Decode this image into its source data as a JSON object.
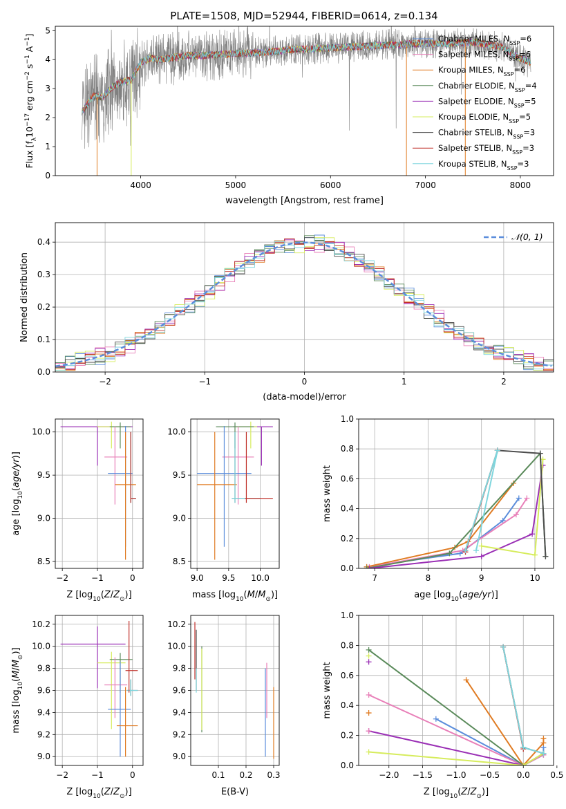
{
  "figure": {
    "title": "PLATE=1508, MJD=52944, FIBERID=0614, z=0.134"
  },
  "colors": {
    "Chabrier MILES": "#5b8ddb",
    "Salpeter MILES": "#e87fb8",
    "Kroupa MILES": "#e07b22",
    "Chabrier ELODIE": "#5a8a5a",
    "Salpeter ELODIE": "#9a2fb5",
    "Kroupa ELODIE": "#d6ec5c",
    "Chabrier STELIB": "#4d4d4d",
    "Salpeter STELIB": "#c0302a",
    "Kroupa STELIB": "#7fd6dd",
    "data": "#808080",
    "normal": "#5b8ddb"
  },
  "chart_data": [
    {
      "panel": "spectrum",
      "type": "line",
      "xlabel": "wavelength [Angstrom, rest frame]",
      "ylabel": "Flux [f_λ10^-17 erg cm^-2 s^-1 A^-1]",
      "xlim": [
        3100,
        8350
      ],
      "ylim": [
        0,
        5.15
      ],
      "xticks": [
        4000,
        5000,
        6000,
        7000,
        8000
      ],
      "yticks": [
        0,
        1,
        2,
        3,
        4,
        5
      ],
      "grid": false,
      "legend_position": "top-right",
      "legend": [
        {
          "label": "Chabrier MILES, N",
          "sub": "SSP",
          "value": "6",
          "model": "Chabrier MILES"
        },
        {
          "label": "Salpeter MILES, N",
          "sub": "SSP",
          "value": "6",
          "model": "Salpeter MILES"
        },
        {
          "label": "Kroupa MILES, N",
          "sub": "SSP",
          "value": "6",
          "model": "Kroupa MILES"
        },
        {
          "label": "Chabrier ELODIE, N",
          "sub": "SSP",
          "value": "4",
          "model": "Chabrier ELODIE"
        },
        {
          "label": "Salpeter ELODIE, N",
          "sub": "SSP",
          "value": "5",
          "model": "Salpeter ELODIE"
        },
        {
          "label": "Kroupa ELODIE, N",
          "sub": "SSP",
          "value": "5",
          "model": "Kroupa ELODIE"
        },
        {
          "label": "Chabrier STELIB, N",
          "sub": "SSP",
          "value": "3",
          "model": "Chabrier STELIB"
        },
        {
          "label": "Salpeter STELIB, N",
          "sub": "SSP",
          "value": "3",
          "model": "Salpeter STELIB"
        },
        {
          "label": "Kroupa STELIB, N",
          "sub": "SSP",
          "value": "3",
          "model": "Kroupa STELIB"
        }
      ],
      "continuum": {
        "x": [
          3380,
          3500,
          3600,
          3700,
          3800,
          3900,
          4000,
          4100,
          4200,
          4300,
          4500,
          4700,
          5000,
          5300,
          5600,
          6000,
          6300,
          6600,
          6900,
          7200,
          7500,
          7800,
          8000,
          8100
        ],
        "y": [
          2.2,
          2.75,
          2.7,
          3.05,
          3.25,
          3.3,
          3.9,
          4.05,
          4.0,
          4.05,
          4.15,
          4.15,
          4.2,
          4.25,
          4.35,
          4.4,
          4.45,
          4.5,
          4.55,
          4.55,
          4.6,
          4.45,
          4.05,
          3.9
        ]
      }
    },
    {
      "panel": "residuals",
      "type": "line",
      "xlabel": "(data-model)/error",
      "ylabel": "Normed distribution",
      "xlim": [
        -2.5,
        2.5
      ],
      "ylim": [
        0,
        0.46
      ],
      "xticks": [
        -2,
        -1,
        0,
        1,
        2
      ],
      "yticks": [
        0.0,
        0.1,
        0.2,
        0.3,
        0.4
      ],
      "grid": true,
      "legend_position": "top-right",
      "legend": [
        {
          "label": "N(0, 1)",
          "style": "dashed"
        }
      ],
      "bin_width": 0.1,
      "series": [
        {
          "name": "Normal",
          "model": "normal",
          "function": "gaussian",
          "mean": 0,
          "sigma": 1
        },
        {
          "name": "Chabrier MILES",
          "hist_offset": 0.012,
          "phase": 0.0
        },
        {
          "name": "Salpeter MILES",
          "hist_offset": -0.012,
          "phase": 1.3
        },
        {
          "name": "Kroupa MILES",
          "hist_offset": 0.005,
          "phase": 2.1
        },
        {
          "name": "Chabrier ELODIE",
          "hist_offset": -0.006,
          "phase": 3.4
        },
        {
          "name": "Salpeter ELODIE",
          "hist_offset": 0.009,
          "phase": 4.7
        },
        {
          "name": "Kroupa ELODIE",
          "hist_offset": 0.015,
          "phase": 5.5
        },
        {
          "name": "Chabrier STELIB",
          "hist_offset": -0.003,
          "phase": 6.2
        },
        {
          "name": "Salpeter STELIB",
          "hist_offset": 0.0,
          "phase": 7.9
        },
        {
          "name": "Kroupa STELIB",
          "hist_offset": 0.003,
          "phase": 8.6
        }
      ]
    },
    {
      "panel": "age_vs_Z",
      "type": "scatter",
      "xlabel": "Z [log10(Z/Z⊙)]",
      "ylabel": "age [log10(age/yr)]",
      "xlim": [
        -2.2,
        0.3
      ],
      "ylim": [
        8.42,
        10.15
      ],
      "xticks": [
        -2,
        -1,
        0
      ],
      "yticks": [
        8.5,
        9.0,
        9.5,
        10.0
      ],
      "grid": true,
      "points": [
        {
          "model": "Salpeter ELODIE",
          "x": -1.0,
          "xerr": [
            1.05,
            1.0
          ],
          "y": 10.06,
          "yerr": [
            0.45,
            0.0
          ]
        },
        {
          "model": "Kroupa ELODIE",
          "x": -0.6,
          "xerr": [
            0.4,
            0.3
          ],
          "y": 10.06,
          "yerr": [
            0.25,
            0.06
          ]
        },
        {
          "model": "Chabrier ELODIE",
          "x": -0.35,
          "xerr": [
            0.3,
            0.3
          ],
          "y": 10.06,
          "yerr": [
            0.25,
            0.05
          ]
        },
        {
          "model": "Salpeter MILES",
          "x": -0.5,
          "xerr": [
            0.3,
            0.35
          ],
          "y": 9.71,
          "yerr": [
            0.55,
            0.35
          ]
        },
        {
          "model": "Chabrier MILES",
          "x": -0.2,
          "xerr": [
            0.5,
            0.2
          ],
          "y": 9.52,
          "yerr": [
            0.85,
            0.55
          ]
        },
        {
          "model": "Kroupa MILES",
          "x": -0.2,
          "xerr": [
            0.3,
            0.3
          ],
          "y": 9.39,
          "yerr": [
            0.87,
            0.61
          ]
        },
        {
          "model": "Chabrier STELIB",
          "x": -0.05,
          "xerr": [
            0.0,
            0.15
          ],
          "y": 9.23,
          "yerr": [
            0.05,
            0.77
          ]
        },
        {
          "model": "Kroupa STELIB",
          "x": -0.05,
          "xerr": [
            0.0,
            0.15
          ],
          "y": 9.23,
          "yerr": [
            0.05,
            0.77
          ]
        },
        {
          "model": "Salpeter STELIB",
          "x": -0.05,
          "xerr": [
            0.0,
            0.15
          ],
          "y": 9.23,
          "yerr": [
            0.05,
            0.77
          ]
        }
      ]
    },
    {
      "panel": "age_vs_mass",
      "type": "scatter",
      "xlabel": "mass [log10(M/M⊙)]",
      "ylabel": "",
      "xlim": [
        8.9,
        10.3
      ],
      "ylim": [
        8.42,
        10.15
      ],
      "xticks": [
        9.0,
        9.5,
        10.0
      ],
      "yticks": [
        8.5,
        9.0,
        9.5,
        10.0
      ],
      "grid": true,
      "points": [
        {
          "model": "Salpeter ELODIE",
          "x": 10.02,
          "xerr": [
            0.45,
            0.18
          ],
          "y": 10.06,
          "yerr": [
            0.45,
            0.0
          ]
        },
        {
          "model": "Kroupa ELODIE",
          "x": 9.85,
          "xerr": [
            0.25,
            0.1
          ],
          "y": 10.06,
          "yerr": [
            0.25,
            0.06
          ]
        },
        {
          "model": "Chabrier ELODIE",
          "x": 9.6,
          "xerr": [
            0.3,
            0.3
          ],
          "y": 10.06,
          "yerr": [
            0.25,
            0.05
          ]
        },
        {
          "model": "Salpeter MILES",
          "x": 9.65,
          "xerr": [
            0.25,
            0.25
          ],
          "y": 9.71,
          "yerr": [
            0.55,
            0.35
          ]
        },
        {
          "model": "Chabrier MILES",
          "x": 9.43,
          "xerr": [
            0.43,
            0.43
          ],
          "y": 9.52,
          "yerr": [
            0.85,
            0.55
          ]
        },
        {
          "model": "Kroupa MILES",
          "x": 9.28,
          "xerr": [
            0.28,
            0.35
          ],
          "y": 9.39,
          "yerr": [
            0.87,
            0.61
          ]
        },
        {
          "model": "Chabrier STELIB",
          "x": 9.6,
          "xerr": [
            0.05,
            0.4
          ],
          "y": 9.23,
          "yerr": [
            0.05,
            0.77
          ]
        },
        {
          "model": "Kroupa STELIB",
          "x": 9.6,
          "xerr": [
            0.05,
            0.4
          ],
          "y": 9.23,
          "yerr": [
            0.05,
            0.77
          ]
        },
        {
          "model": "Salpeter STELIB",
          "x": 9.78,
          "xerr": [
            0.02,
            0.42
          ],
          "y": 9.23,
          "yerr": [
            0.05,
            0.77
          ]
        }
      ]
    },
    {
      "panel": "massweight_vs_age",
      "type": "line",
      "xlabel": "age [log10(age/yr)]",
      "ylabel": "mass weight",
      "xlim": [
        6.7,
        10.35
      ],
      "ylim": [
        0,
        1.0
      ],
      "xticks": [
        7,
        8,
        9,
        10
      ],
      "yticks": [
        0.0,
        0.2,
        0.4,
        0.6,
        0.8,
        1.0
      ],
      "grid": true,
      "series": [
        {
          "name": "Chabrier MILES",
          "x": [
            6.85,
            8.6,
            9.4,
            9.7
          ],
          "y": [
            0.01,
            0.1,
            0.32,
            0.47
          ]
        },
        {
          "name": "Salpeter MILES",
          "x": [
            6.9,
            8.65,
            9.65,
            9.85
          ],
          "y": [
            0.01,
            0.12,
            0.36,
            0.47
          ]
        },
        {
          "name": "Kroupa MILES",
          "x": [
            6.85,
            8.5,
            8.75,
            9.6
          ],
          "y": [
            0.01,
            0.14,
            0.18,
            0.57
          ]
        },
        {
          "name": "Chabrier ELODIE",
          "x": [
            6.85,
            8.4,
            10.1,
            10.2
          ],
          "y": [
            0.0,
            0.1,
            0.77,
            0.08
          ]
        },
        {
          "name": "Salpeter ELODIE",
          "x": [
            6.9,
            9.0,
            9.95,
            10.15
          ],
          "y": [
            0.0,
            0.08,
            0.23,
            0.69
          ]
        },
        {
          "name": "Kroupa ELODIE",
          "x": [
            9.0,
            10.0,
            10.15
          ],
          "y": [
            0.15,
            0.09,
            0.73
          ]
        },
        {
          "name": "Chabrier STELIB",
          "x": [
            8.7,
            9.3,
            10.1,
            10.2
          ],
          "y": [
            0.12,
            0.79,
            0.77,
            0.08
          ]
        },
        {
          "name": "Salpeter STELIB",
          "x": [
            8.7,
            9.3
          ],
          "y": [
            0.11,
            0.79
          ]
        },
        {
          "name": "Kroupa STELIB",
          "x": [
            8.7,
            9.3,
            8.9
          ],
          "y": [
            0.12,
            0.79,
            0.12
          ]
        }
      ]
    },
    {
      "panel": "mass_vs_Z",
      "type": "scatter",
      "xlabel": "Z [log10(Z/Z⊙)]",
      "ylabel": "mass [log10(M/M⊙)]",
      "xlim": [
        -2.2,
        0.3
      ],
      "ylim": [
        8.92,
        10.28
      ],
      "xticks": [
        -2,
        -1,
        0
      ],
      "yticks": [
        9.0,
        9.2,
        9.4,
        9.6,
        9.8,
        10.0,
        10.2
      ],
      "grid": true,
      "points": [
        {
          "model": "Salpeter ELODIE",
          "x": -1.0,
          "xerr": [
            1.05,
            0.8
          ],
          "y": 10.02,
          "yerr": [
            0.4,
            0.16
          ]
        },
        {
          "model": "Kroupa ELODIE",
          "x": -0.6,
          "xerr": [
            0.4,
            0.4
          ],
          "y": 9.85,
          "yerr": [
            0.6,
            0.1
          ]
        },
        {
          "model": "Chabrier ELODIE",
          "x": -0.35,
          "xerr": [
            0.3,
            0.35
          ],
          "y": 9.88,
          "yerr": [
            0.3,
            0.06
          ]
        },
        {
          "model": "Salpeter MILES",
          "x": -0.5,
          "xerr": [
            0.3,
            0.35
          ],
          "y": 9.65,
          "yerr": [
            0.3,
            0.25
          ]
        },
        {
          "model": "Chabrier MILES",
          "x": -0.35,
          "xerr": [
            0.35,
            0.3
          ],
          "y": 9.43,
          "yerr": [
            0.43,
            0.43
          ]
        },
        {
          "model": "Kroupa MILES",
          "x": -0.2,
          "xerr": [
            0.25,
            0.35
          ],
          "y": 9.28,
          "yerr": [
            0.28,
            0.35
          ]
        },
        {
          "model": "Chabrier STELIB",
          "x": -0.05,
          "xerr": [
            0.1,
            0.2
          ],
          "y": 9.6,
          "yerr": [
            0.05,
            0.1
          ]
        },
        {
          "model": "Kroupa STELIB",
          "x": -0.05,
          "xerr": [
            0.1,
            0.2
          ],
          "y": 9.6,
          "yerr": [
            0.05,
            0.1
          ]
        },
        {
          "model": "Salpeter STELIB",
          "x": -0.1,
          "xerr": [
            0.1,
            0.25
          ],
          "y": 9.78,
          "yerr": [
            0.2,
            0.45
          ]
        }
      ]
    },
    {
      "panel": "mass_vs_EBV",
      "type": "scatter",
      "xlabel": "E(B-V)",
      "ylabel": "",
      "xlim": [
        0.0,
        0.32
      ],
      "ylim": [
        8.92,
        10.28
      ],
      "xticks": [
        0.1,
        0.2,
        0.3
      ],
      "yticks": [
        9.0,
        9.2,
        9.4,
        9.6,
        9.8,
        10.0,
        10.2
      ],
      "grid": true,
      "points": [
        {
          "model": "Salpeter STELIB",
          "x": 0.015,
          "y": 9.9,
          "yerr": [
            0.2,
            0.32
          ]
        },
        {
          "model": "Chabrier STELIB",
          "x": 0.02,
          "y": 9.85,
          "yerr": [
            0.25,
            0.3
          ]
        },
        {
          "model": "Kroupa STELIB",
          "x": 0.02,
          "y": 9.72,
          "yerr": [
            0.14,
            0.08
          ]
        },
        {
          "model": "Chabrier ELODIE",
          "x": 0.04,
          "y": 9.6,
          "yerr": [
            0.38,
            0.4
          ]
        },
        {
          "model": "Kroupa ELODIE",
          "x": 0.04,
          "y": 9.6,
          "yerr": [
            0.36,
            0.38
          ]
        },
        {
          "model": "Salpeter MILES",
          "x": 0.275,
          "y": 9.65,
          "yerr": [
            0.3,
            0.2
          ]
        },
        {
          "model": "Chabrier MILES",
          "x": 0.27,
          "y": 9.43,
          "yerr": [
            0.43,
            0.37
          ]
        },
        {
          "model": "Kroupa MILES",
          "x": 0.3,
          "y": 9.28,
          "yerr": [
            0.3,
            0.35
          ]
        }
      ]
    },
    {
      "panel": "massweight_vs_Z",
      "type": "line",
      "xlabel": "Z [log10(Z/Z⊙)]",
      "ylabel": "mass weight",
      "xlim": [
        -2.45,
        0.45
      ],
      "ylim": [
        0,
        1.0
      ],
      "xticks": [
        -2.0,
        -1.5,
        -1.0,
        -0.5,
        0.0,
        0.5
      ],
      "yticks": [
        0.0,
        0.2,
        0.4,
        0.6,
        0.8,
        1.0
      ],
      "grid": true,
      "series": [
        {
          "name": "Chabrier MILES",
          "x": [
            -1.3,
            0.0,
            0.3,
            0.3
          ],
          "y": [
            0.31,
            0.0,
            0.07,
            0.12
          ]
        },
        {
          "name": "Salpeter MILES",
          "x": [
            -2.3,
            0.0,
            0.3
          ],
          "y": [
            0.47,
            0.0,
            0.07
          ]
        },
        {
          "name": "Kroupa MILES",
          "x": [
            -0.85,
            0.0,
            0.3,
            0.3
          ],
          "y": [
            0.57,
            0.0,
            0.15,
            0.18
          ]
        },
        {
          "name": "Chabrier ELODIE",
          "x": [
            -2.3,
            0.0,
            0.3
          ],
          "y": [
            0.77,
            0.0,
            0.08
          ]
        },
        {
          "name": "Salpeter ELODIE",
          "x": [
            -2.3,
            0.0
          ],
          "y": [
            0.23,
            0.0
          ]
        },
        {
          "name": "Kroupa ELODIE",
          "x": [
            -2.3,
            0.0,
            0.3
          ],
          "y": [
            0.09,
            0.0,
            0.08
          ]
        },
        {
          "name": "Chabrier STELIB",
          "x": [
            -0.3,
            0.0,
            0.3
          ],
          "y": [
            0.79,
            0.12,
            0.08
          ]
        },
        {
          "name": "Salpeter STELIB",
          "x": [
            -0.3,
            0.0
          ],
          "y": [
            0.79,
            0.11
          ]
        },
        {
          "name": "Kroupa STELIB",
          "x": [
            -0.3,
            0.0,
            0.3
          ],
          "y": [
            0.79,
            0.12,
            0.08
          ]
        }
      ],
      "markers_only": [
        {
          "model": "Salpeter ELODIE",
          "x": -2.3,
          "y": 0.69
        },
        {
          "model": "Kroupa ELODIE",
          "x": -2.3,
          "y": 0.73
        },
        {
          "model": "Kroupa MILES",
          "x": -2.3,
          "y": 0.35
        },
        {
          "model": "Salpeter MILES",
          "x": -2.3,
          "y": 0.23
        }
      ]
    }
  ]
}
